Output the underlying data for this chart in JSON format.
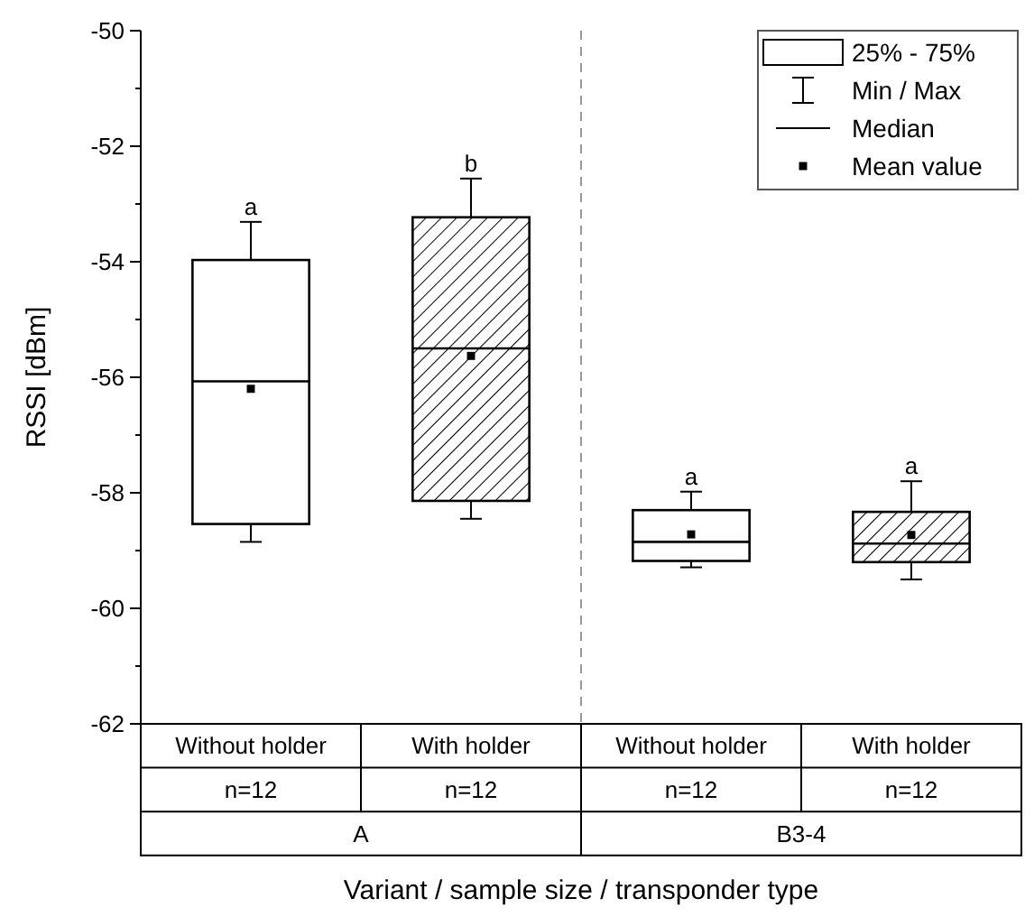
{
  "chart_data": {
    "type": "box",
    "xlabel": "Variant / sample size / transponder type",
    "ylabel": "RSSI [dBm]",
    "categories": [
      "Without holder",
      "With holder",
      "Without holder",
      "With holder"
    ],
    "ylim": [
      -62,
      -50
    ],
    "yticks": [
      -62,
      -60,
      -58,
      -56,
      -54,
      -52,
      -50
    ],
    "marker": "square",
    "series": [
      {
        "color": "#ffffff",
        "boxes": [
          {
            "low": -58.85,
            "q1": -58.54,
            "median": -56.07,
            "q3": -53.97,
            "high": -53.31,
            "mean": -56.2
          },
          null,
          {
            "low": -59.29,
            "q1": -59.18,
            "median": -58.85,
            "q3": -58.3,
            "high": -57.98,
            "mean": -58.72
          },
          null
        ]
      },
      {
        "color": "#000000",
        "boxes": [
          null,
          {
            "low": -58.45,
            "q1": -58.14,
            "median": -55.5,
            "q3": -53.23,
            "high": -52.56,
            "mean": -55.63
          },
          null,
          {
            "low": -59.5,
            "q1": -59.2,
            "median": -58.88,
            "q3": -58.33,
            "high": -57.8,
            "mean": -58.73
          }
        ]
      }
    ],
    "annotations": [
      "a",
      "b",
      "a",
      "a",
      "n=12",
      "n=12",
      "n=12",
      "n=12",
      "A",
      "B3-4",
      "25% - 75%",
      "Min / Max",
      "Median",
      "Mean value"
    ]
  }
}
